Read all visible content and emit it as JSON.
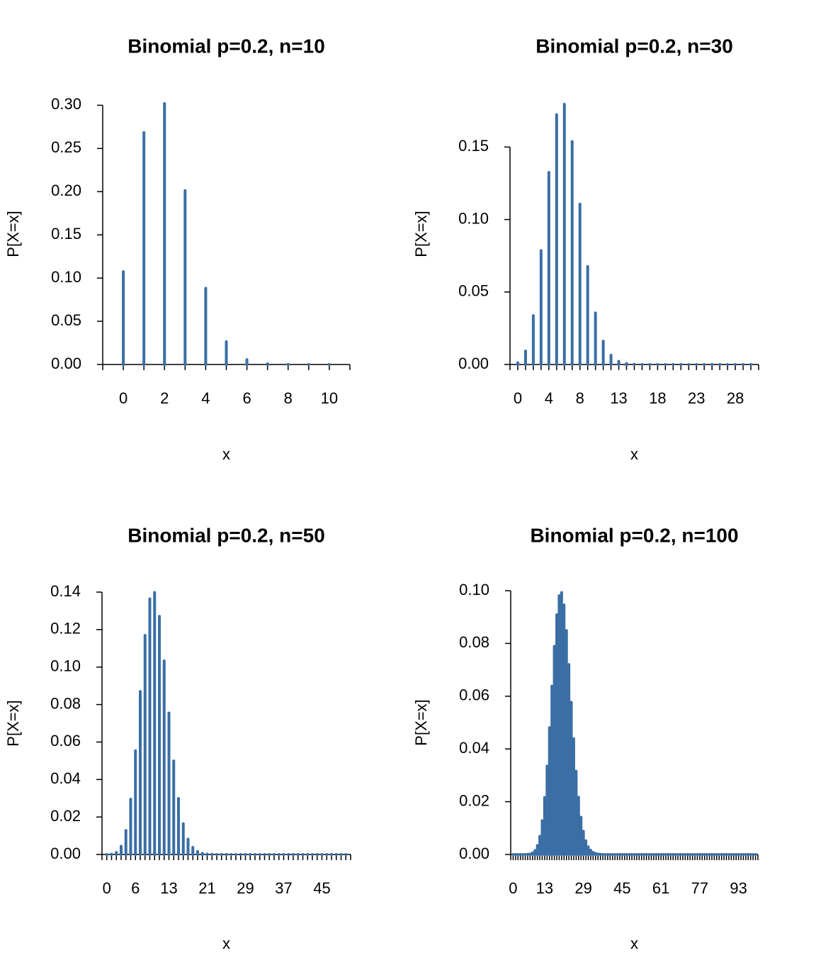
{
  "chart_data": [
    {
      "type": "bar",
      "title": "Binomial p=0.2, n=10",
      "xlabel": "x",
      "ylabel": "P[X=x]",
      "color": "#3a6ea5",
      "x": [
        0,
        1,
        2,
        3,
        4,
        5,
        6,
        7,
        8,
        9,
        10
      ],
      "values": [
        0.1074,
        0.2684,
        0.302,
        0.2013,
        0.0881,
        0.0264,
        0.0055,
        0.0008,
        0.0001,
        0,
        0
      ],
      "xlim": [
        -1,
        11
      ],
      "xticks": [
        0,
        2,
        4,
        6,
        8,
        10
      ],
      "ylim": [
        0,
        0.302
      ],
      "yticks": [
        {
          "value": 0,
          "label": "0.00"
        },
        0.05,
        {
          "value": 0.1,
          "label": "0.10"
        },
        0.15,
        {
          "value": 0.2,
          "label": "0.20"
        },
        0.25,
        {
          "value": 0.3,
          "label": "0.30"
        }
      ]
    },
    {
      "type": "bar",
      "title": "Binomial p=0.2, n=30",
      "xlabel": "x",
      "ylabel": "P[X=x]",
      "color": "#3a6ea5",
      "x": [
        0,
        1,
        2,
        3,
        4,
        5,
        6,
        7,
        8,
        9,
        10,
        11,
        12,
        13,
        14,
        15,
        16,
        17,
        18,
        19,
        20,
        21,
        22,
        23,
        24,
        25,
        26,
        27,
        28,
        29,
        30
      ],
      "values": [
        0.0012,
        0.0093,
        0.0337,
        0.0785,
        0.1325,
        0.1723,
        0.1795,
        0.1538,
        0.1106,
        0.0676,
        0.0355,
        0.0161,
        0.0064,
        0.0022,
        0.0007,
        0.0002,
        0,
        0,
        0,
        0,
        0,
        0,
        0,
        0,
        0,
        0,
        0,
        0,
        0,
        0,
        0
      ],
      "xlim": [
        -1,
        31
      ],
      "xticks": [
        0,
        4,
        8,
        13,
        18,
        23,
        28
      ],
      "ylim": [
        0,
        0.18
      ],
      "yticks": [
        {
          "value": 0,
          "label": "0.00"
        },
        0.05,
        {
          "value": 0.1,
          "label": "0.10"
        },
        0.15
      ]
    },
    {
      "type": "bar",
      "title": "Binomial p=0.2, n=50",
      "xlabel": "x",
      "ylabel": "P[X=x]",
      "color": "#3a6ea5",
      "x": [
        0,
        1,
        2,
        3,
        4,
        5,
        6,
        7,
        8,
        9,
        10,
        11,
        12,
        13,
        14,
        15,
        16,
        17,
        18,
        19,
        20,
        21,
        22,
        23,
        24,
        25,
        26,
        27,
        28,
        29,
        30,
        31,
        32,
        33,
        34,
        35,
        36,
        37,
        38,
        39,
        40,
        41,
        42,
        43,
        44,
        45,
        46,
        47,
        48,
        49,
        50
      ],
      "values": [
        0,
        0.0002,
        0.0011,
        0.0044,
        0.0128,
        0.0295,
        0.0554,
        0.087,
        0.1169,
        0.1364,
        0.1398,
        0.1271,
        0.1033,
        0.0755,
        0.0499,
        0.0299,
        0.0164,
        0.0082,
        0.0038,
        0.0016,
        0.0006,
        0.0002,
        0.0001,
        0,
        0,
        0,
        0,
        0,
        0,
        0,
        0,
        0,
        0,
        0,
        0,
        0,
        0,
        0,
        0,
        0,
        0,
        0,
        0,
        0,
        0,
        0,
        0,
        0,
        0,
        0,
        0
      ],
      "xlim": [
        -1,
        51
      ],
      "xticks": [
        0,
        6,
        13,
        21,
        29,
        37,
        45
      ],
      "ylim": [
        0,
        0.14
      ],
      "yticks": [
        {
          "value": 0,
          "label": "0.00"
        },
        0.02,
        0.04,
        0.06,
        0.08,
        {
          "value": 0.1,
          "label": "0.10"
        },
        0.12,
        0.14
      ]
    },
    {
      "type": "bar",
      "title": "Binomial p=0.2, n=100",
      "xlabel": "x",
      "ylabel": "P[X=x]",
      "color": "#3a6ea5",
      "x": [
        0,
        1,
        2,
        3,
        4,
        5,
        6,
        7,
        8,
        9,
        10,
        11,
        12,
        13,
        14,
        15,
        16,
        17,
        18,
        19,
        20,
        21,
        22,
        23,
        24,
        25,
        26,
        27,
        28,
        29,
        30,
        31,
        32,
        33,
        34,
        35,
        36,
        37,
        38,
        39,
        40,
        41,
        42,
        43,
        44,
        45,
        46,
        47,
        48,
        49,
        50,
        51,
        52,
        53,
        54,
        55,
        56,
        57,
        58,
        59,
        60,
        61,
        62,
        63,
        64,
        65,
        66,
        67,
        68,
        69,
        70,
        71,
        72,
        73,
        74,
        75,
        76,
        77,
        78,
        79,
        80,
        81,
        82,
        83,
        84,
        85,
        86,
        87,
        88,
        89,
        90,
        91,
        92,
        93,
        94,
        95,
        96,
        97,
        98,
        99,
        100
      ],
      "values": [
        0,
        0,
        0,
        0,
        0,
        0,
        0.0001,
        0.0002,
        0.0006,
        0.0015,
        0.0034,
        0.0069,
        0.0128,
        0.0216,
        0.0335,
        0.0481,
        0.0638,
        0.0789,
        0.0909,
        0.0981,
        0.0993,
        0.0946,
        0.0849,
        0.072,
        0.0577,
        0.0439,
        0.0316,
        0.0217,
        0.0141,
        0.0088,
        0.0052,
        0.0029,
        0.0016,
        0.0008,
        0.0004,
        0.0002,
        0.0001,
        0,
        0,
        0,
        0,
        0,
        0,
        0,
        0,
        0,
        0,
        0,
        0,
        0,
        0,
        0,
        0,
        0,
        0,
        0,
        0,
        0,
        0,
        0,
        0,
        0,
        0,
        0,
        0,
        0,
        0,
        0,
        0,
        0,
        0,
        0,
        0,
        0,
        0,
        0,
        0,
        0,
        0,
        0,
        0,
        0,
        0,
        0,
        0,
        0,
        0,
        0,
        0,
        0,
        0,
        0,
        0,
        0,
        0,
        0,
        0,
        0,
        0,
        0,
        0
      ],
      "xlim": [
        -1,
        101
      ],
      "xticks": [
        0,
        13,
        29,
        45,
        61,
        77,
        93
      ],
      "ylim": [
        0,
        0.1
      ],
      "yticks": [
        {
          "value": 0,
          "label": "0.00"
        },
        0.02,
        0.04,
        0.06,
        0.08,
        {
          "value": 0.1,
          "label": "0.10"
        }
      ]
    }
  ]
}
